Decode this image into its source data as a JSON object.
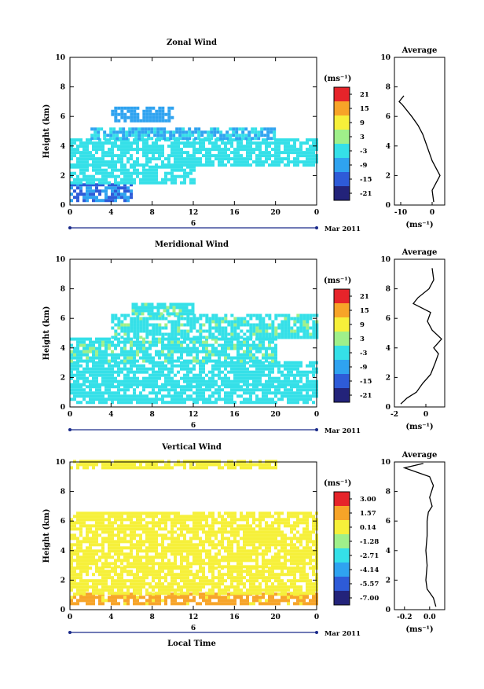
{
  "page": {
    "x_axis_label": "Local Time",
    "month_label": "Mar 2011"
  },
  "chart_data": [
    {
      "type": "heatmap",
      "title": "Zonal Wind",
      "ylabel": "Height (km)",
      "xlabel": "Local Time",
      "xlim": [
        0,
        24
      ],
      "ylim": [
        0,
        10
      ],
      "xticks": [
        "0",
        "4",
        "8",
        "12",
        "16",
        "20",
        "0"
      ],
      "yticks": [
        "0",
        "2",
        "4",
        "6",
        "8",
        "10"
      ],
      "date_marker": "6",
      "month_label": "Mar 2011",
      "colorbar": {
        "unit": "(ms⁻¹)",
        "ticks": [
          "21",
          "15",
          "9",
          "3",
          "-3",
          "-9",
          "-15",
          "-21"
        ],
        "range": [
          -24,
          24
        ]
      },
      "field": [
        {
          "y": [
            0.2,
            1.4
          ],
          "x": [
            0,
            6
          ],
          "v": -12
        },
        {
          "y": [
            1.4,
            2.6
          ],
          "x": [
            0,
            12
          ],
          "v": -4
        },
        {
          "y": [
            2.6,
            4.4
          ],
          "x": [
            0,
            24
          ],
          "v": -3
        },
        {
          "y": [
            4.4,
            5.2
          ],
          "x": [
            2,
            20
          ],
          "v": -6
        },
        {
          "y": [
            5.6,
            6.6
          ],
          "x": [
            4,
            10
          ],
          "v": -10
        }
      ],
      "average": {
        "title": "Average",
        "xlabel": "(ms⁻¹)",
        "xlim": [
          -12,
          4
        ],
        "xticks": [
          "-10",
          "0"
        ],
        "profile_y": [
          0.2,
          1.0,
          1.6,
          2.0,
          2.4,
          3.0,
          3.6,
          4.2,
          4.8,
          5.4,
          6.0,
          6.4,
          6.8,
          7.0,
          7.4
        ],
        "profile_x": [
          0.5,
          0.0,
          1.5,
          2.5,
          1.5,
          0.0,
          -1.0,
          -2.0,
          -3.0,
          -4.5,
          -6.5,
          -8.0,
          -9.5,
          -10.5,
          -9.0
        ]
      }
    },
    {
      "type": "heatmap",
      "title": "Meridional Wind",
      "ylabel": "Height (km)",
      "xlabel": "Local Time",
      "xlim": [
        0,
        24
      ],
      "ylim": [
        0,
        10
      ],
      "xticks": [
        "0",
        "4",
        "8",
        "12",
        "16",
        "20",
        "0"
      ],
      "yticks": [
        "0",
        "2",
        "4",
        "6",
        "8",
        "10"
      ],
      "date_marker": "6",
      "month_label": "Mar 2011",
      "colorbar": {
        "unit": "(ms⁻¹)",
        "ticks": [
          "21",
          "15",
          "9",
          "3",
          "-3",
          "-9",
          "-15",
          "-21"
        ],
        "range": [
          -24,
          24
        ]
      },
      "field": [
        {
          "y": [
            0.2,
            1.4
          ],
          "x": [
            0,
            24
          ],
          "v": -4
        },
        {
          "y": [
            1.4,
            3.0
          ],
          "x": [
            0,
            24
          ],
          "v": -2
        },
        {
          "y": [
            3.0,
            4.6
          ],
          "x": [
            0,
            20
          ],
          "v": -1
        },
        {
          "y": [
            4.6,
            6.2
          ],
          "x": [
            4,
            24
          ],
          "v": -1
        },
        {
          "y": [
            6.2,
            7.0
          ],
          "x": [
            6,
            12
          ],
          "v": -1
        }
      ],
      "average": {
        "title": "Average",
        "xlabel": "(ms⁻¹)",
        "xlim": [
          -2,
          1.2
        ],
        "xticks": [
          "-2",
          "0"
        ],
        "profile_y": [
          0.2,
          0.6,
          1.0,
          1.6,
          2.2,
          3.0,
          3.6,
          4.0,
          4.6,
          5.2,
          5.8,
          6.4,
          7.0,
          7.4,
          8.0,
          8.6,
          9.4
        ],
        "profile_x": [
          -1.6,
          -1.2,
          -0.6,
          -0.2,
          0.3,
          0.6,
          0.8,
          0.5,
          1.0,
          0.4,
          0.1,
          0.3,
          -0.8,
          -0.5,
          0.2,
          0.5,
          0.4
        ]
      }
    },
    {
      "type": "heatmap",
      "title": "Vertical Wind",
      "ylabel": "Height (km)",
      "xlabel": "Local Time",
      "xlim": [
        0,
        24
      ],
      "ylim": [
        0,
        10
      ],
      "xticks": [
        "0",
        "4",
        "8",
        "12",
        "16",
        "20",
        "0"
      ],
      "yticks": [
        "0",
        "2",
        "4",
        "6",
        "8",
        "10"
      ],
      "date_marker": "6",
      "month_label": "Mar 2011",
      "colorbar": {
        "unit": "(ms⁻¹)",
        "ticks": [
          "3.00",
          "1.57",
          "0.14",
          "-1.28",
          "-2.71",
          "-4.14",
          "-5.57",
          "-7.00"
        ],
        "range": [
          -7.7,
          3.7
        ]
      },
      "field": [
        {
          "y": [
            0.3,
            1.0
          ],
          "x": [
            0,
            24
          ],
          "v": 1.1
        },
        {
          "y": [
            1.0,
            2.8
          ],
          "x": [
            0,
            24
          ],
          "v": 0.4
        },
        {
          "y": [
            2.8,
            6.6
          ],
          "x": [
            0,
            24
          ],
          "v": 0.3
        },
        {
          "y": [
            9.5,
            10.0
          ],
          "x": [
            0,
            20
          ],
          "v": 0.3
        }
      ],
      "average": {
        "title": "Average",
        "xlabel": "(ms⁻¹)",
        "xlim": [
          -0.28,
          0.12
        ],
        "xticks": [
          "-0.2",
          "0.0"
        ],
        "profile_y": [
          0.2,
          0.8,
          1.4,
          2.0,
          3.0,
          4.0,
          5.0,
          6.0,
          6.6,
          7.0,
          7.6,
          8.4,
          9.0,
          9.6,
          9.9
        ],
        "profile_x": [
          0.05,
          0.03,
          -0.02,
          -0.03,
          -0.02,
          -0.03,
          -0.02,
          -0.02,
          -0.01,
          0.02,
          0.0,
          0.03,
          0.0,
          -0.2,
          -0.05
        ]
      }
    }
  ]
}
